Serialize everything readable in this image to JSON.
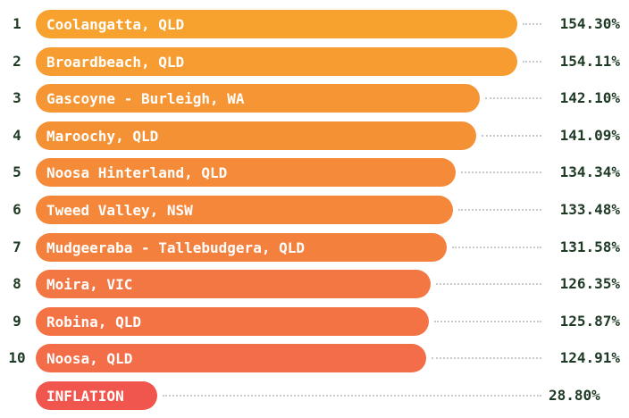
{
  "chart_data": {
    "type": "bar",
    "orientation": "horizontal",
    "categories": [
      "Coolangatta, QLD",
      "Broardbeach, QLD",
      "Gascoyne - Burleigh, WA",
      "Maroochy, QLD",
      "Noosa Hinterland, QLD",
      "Tweed Valley, NSW",
      "Mudgeeraba - Tallebudgera, QLD",
      "Moira, VIC",
      "Robina, QLD",
      "Noosa, QLD",
      "INFLATION"
    ],
    "ranks": [
      "1",
      "2",
      "3",
      "4",
      "5",
      "6",
      "7",
      "8",
      "9",
      "10",
      ""
    ],
    "values": [
      154.3,
      154.11,
      142.1,
      141.09,
      134.34,
      133.48,
      131.58,
      126.35,
      125.87,
      124.91,
      28.8
    ],
    "value_labels": [
      "154.30%",
      "154.11%",
      "142.10%",
      "141.09%",
      "134.34%",
      "133.48%",
      "131.58%",
      "126.35%",
      "125.87%",
      "124.91%",
      "28.80%"
    ],
    "colors": [
      "#f7a12e",
      "#f69c31",
      "#f69533",
      "#f59135",
      "#f58a38",
      "#f5873a",
      "#f4803d",
      "#f37743",
      "#f37345",
      "#f26d48",
      "#f0564d"
    ],
    "xlim": [
      0,
      160
    ],
    "title": "",
    "xlabel": "",
    "ylabel": ""
  }
}
